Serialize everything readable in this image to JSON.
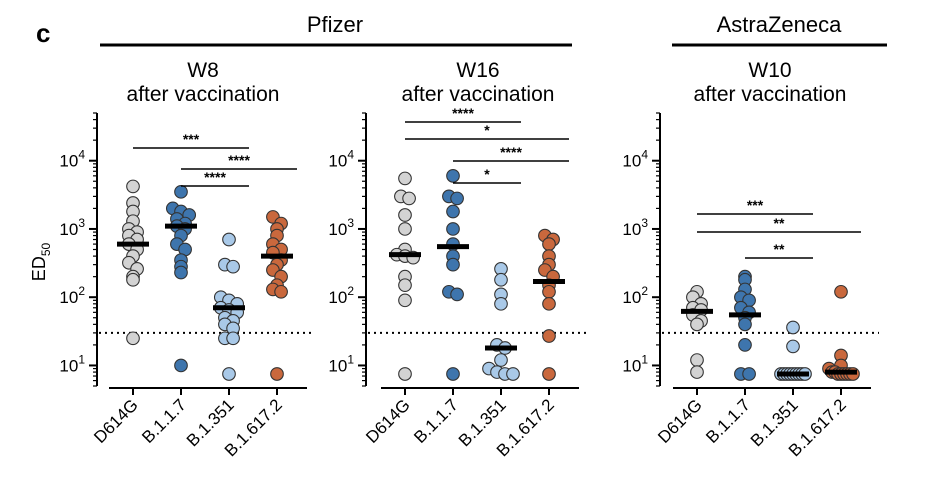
{
  "panel_letter": "c",
  "groups": [
    {
      "label": "Pfizer"
    },
    {
      "label": "AstraZeneca"
    }
  ],
  "y_axis_label": "ED",
  "y_axis_label_sub": "50",
  "colors": {
    "D614G": "#d3d3d3",
    "B.1.1.7": "#3e75ad",
    "B.1.351": "#a9c9e8",
    "B.1.617.2": "#c9683d",
    "median": "#000000",
    "threshold": "#000000"
  },
  "chart_data": [
    {
      "type": "scatter",
      "group": "Pfizer",
      "title_line1": "W8",
      "title_line2": "after vaccination",
      "y_scale": "log",
      "ylim": [
        5,
        50000
      ],
      "y_ticks": [
        10,
        100,
        1000,
        10000
      ],
      "y_tick_base": "10",
      "y_tick_exps": [
        "1",
        "2",
        "3",
        "4"
      ],
      "threshold": 30,
      "categories": [
        "D614G",
        "B.1.1.7",
        "B.1.351",
        "B.1.617.2"
      ],
      "series": [
        {
          "category": "D614G",
          "median": 600,
          "values": [
            4200,
            2400,
            1800,
            1300,
            1000,
            900,
            800,
            700,
            600,
            500,
            400,
            320,
            260,
            200,
            180,
            25
          ]
        },
        {
          "category": "B.1.1.7",
          "median": 1100,
          "values": [
            3500,
            2000,
            1800,
            1600,
            1400,
            1200,
            1100,
            1000,
            800,
            600,
            500,
            350,
            280,
            230,
            10
          ]
        },
        {
          "category": "B.1.351",
          "median": 70,
          "values": [
            700,
            300,
            280,
            100,
            90,
            80,
            70,
            65,
            60,
            50,
            45,
            40,
            35,
            25,
            25,
            7.5
          ]
        },
        {
          "category": "B.1.617.2",
          "median": 400,
          "values": [
            1500,
            1200,
            1000,
            800,
            600,
            500,
            450,
            350,
            300,
            250,
            200,
            150,
            130,
            120,
            7.5
          ]
        }
      ],
      "significance": [
        {
          "from": "D614G",
          "to": "B.1.351",
          "label": "***"
        },
        {
          "from": "B.1.1.7",
          "to": "B.1.617.2",
          "label": "****"
        },
        {
          "from": "B.1.1.7",
          "to": "B.1.351",
          "label": "****"
        }
      ]
    },
    {
      "type": "scatter",
      "group": "Pfizer",
      "title_line1": "W16",
      "title_line2": "after vaccination",
      "y_scale": "log",
      "ylim": [
        5,
        50000
      ],
      "y_ticks": [
        10,
        100,
        1000,
        10000
      ],
      "y_tick_base": "10",
      "y_tick_exps": [
        "1",
        "2",
        "3",
        "4"
      ],
      "threshold": 30,
      "categories": [
        "D614G",
        "B.1.1.7",
        "B.1.351",
        "B.1.617.2"
      ],
      "series": [
        {
          "category": "D614G",
          "median": 420,
          "values": [
            5500,
            3000,
            2800,
            1600,
            1000,
            500,
            420,
            400,
            380,
            200,
            150,
            90,
            7.5
          ]
        },
        {
          "category": "B.1.1.7",
          "median": 550,
          "values": [
            6000,
            3000,
            2800,
            1800,
            1000,
            600,
            400,
            300,
            120,
            110,
            7.5
          ]
        },
        {
          "category": "B.1.351",
          "median": 18,
          "values": [
            260,
            180,
            110,
            80,
            20,
            18,
            12,
            9,
            8,
            7.5,
            7.5
          ]
        },
        {
          "category": "B.1.617.2",
          "median": 170,
          "values": [
            800,
            700,
            600,
            400,
            300,
            250,
            200,
            150,
            120,
            80,
            27,
            7.5
          ]
        }
      ],
      "significance": [
        {
          "from": "D614G",
          "to": "B.1.351",
          "label": "****"
        },
        {
          "from": "D614G",
          "to": "B.1.617.2",
          "label": "*"
        },
        {
          "from": "B.1.1.7",
          "to": "B.1.617.2",
          "label": "****"
        },
        {
          "from": "B.1.1.7",
          "to": "B.1.351",
          "label": "*"
        }
      ]
    },
    {
      "type": "scatter",
      "group": "AstraZeneca",
      "title_line1": "W10",
      "title_line2": "after vaccination",
      "y_scale": "log",
      "ylim": [
        5,
        50000
      ],
      "y_ticks": [
        10,
        100,
        1000,
        10000
      ],
      "y_tick_base": "10",
      "y_tick_exps": [
        "1",
        "2",
        "3",
        "4"
      ],
      "threshold": 30,
      "categories": [
        "D614G",
        "B.1.1.7",
        "B.1.351",
        "B.1.617.2"
      ],
      "series": [
        {
          "category": "D614G",
          "median": 62,
          "values": [
            120,
            100,
            80,
            70,
            65,
            55,
            45,
            40,
            12,
            8
          ]
        },
        {
          "category": "B.1.1.7",
          "median": 55,
          "values": [
            200,
            180,
            130,
            100,
            90,
            70,
            60,
            50,
            40,
            20,
            7.5,
            7.5
          ]
        },
        {
          "category": "B.1.351",
          "median": 7.5,
          "values": [
            36,
            19,
            7.5,
            7.5,
            7.5,
            7.5,
            7.5,
            7.5,
            7.5,
            7.5,
            7.5
          ]
        },
        {
          "category": "B.1.617.2",
          "median": 8,
          "values": [
            120,
            14,
            10,
            9,
            8,
            8,
            7.5,
            7.5,
            7.5,
            7.5,
            7.5,
            7.5
          ]
        }
      ],
      "significance": [
        {
          "from": "D614G",
          "to": "B.1.351",
          "label": "***"
        },
        {
          "from": "D614G",
          "to": "B.1.617.2",
          "label": "**"
        },
        {
          "from": "B.1.1.7",
          "to": "B.1.351",
          "label": "**"
        }
      ]
    }
  ]
}
